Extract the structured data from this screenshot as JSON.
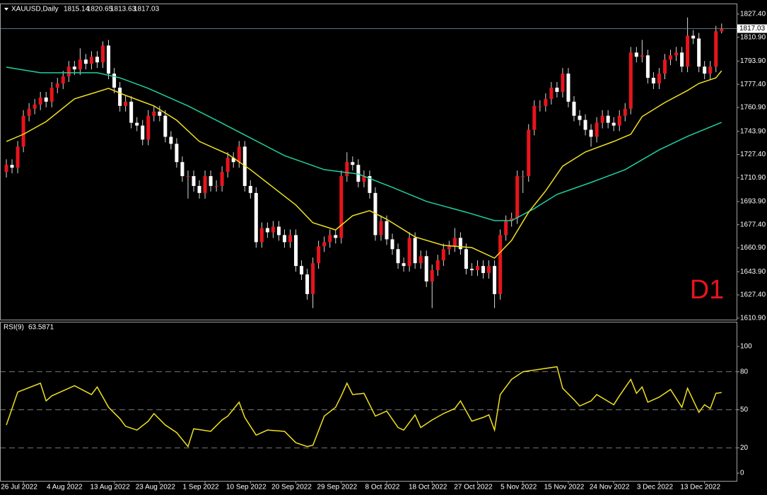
{
  "chart_data": [
    {
      "type": "candlestick",
      "title": "XAUUSD,Daily",
      "open": [
        1715,
        1720,
        1718,
        1733,
        1755,
        1760,
        1763,
        1768,
        1765,
        1775,
        1778,
        1783,
        1790,
        1788,
        1795,
        1792,
        1797,
        1793,
        1805,
        1785,
        1775,
        1762,
        1765,
        1750,
        1748,
        1738,
        1755,
        1758,
        1755,
        1740,
        1735,
        1722,
        1712,
        1712,
        1705,
        1700,
        1712,
        1705,
        1705,
        1715,
        1725,
        1722,
        1733,
        1705,
        1700,
        1665,
        1675,
        1672,
        1676,
        1670,
        1665,
        1670,
        1648,
        1642,
        1628,
        1650,
        1662,
        1665,
        1670,
        1668,
        1712,
        1722,
        1720,
        1708,
        1712,
        1700,
        1670,
        1680,
        1667,
        1660,
        1650,
        1648,
        1668,
        1650,
        1655,
        1637,
        1645,
        1652,
        1660,
        1662,
        1668,
        1660,
        1646,
        1645,
        1648,
        1643,
        1648,
        1628,
        1670,
        1680,
        1682,
        1712,
        1712,
        1745,
        1762,
        1762,
        1767,
        1775,
        1772,
        1785,
        1765,
        1755,
        1752,
        1745,
        1740,
        1750,
        1755,
        1750,
        1748,
        1755,
        1760,
        1800,
        1797,
        1798,
        1782,
        1778,
        1785,
        1795,
        1798,
        1800,
        1790,
        1812,
        1810,
        1790,
        1785,
        1790,
        1815.14
      ],
      "high": [
        1724,
        1724,
        1737,
        1759,
        1764,
        1767,
        1772,
        1772,
        1779,
        1782,
        1787,
        1794,
        1794,
        1803,
        1799,
        1801,
        1801,
        1808,
        1809,
        1789,
        1779,
        1769,
        1769,
        1754,
        1752,
        1759,
        1762,
        1762,
        1759,
        1744,
        1739,
        1726,
        1716,
        1716,
        1709,
        1716,
        1716,
        1709,
        1719,
        1729,
        1729,
        1737,
        1737,
        1709,
        1704,
        1679,
        1679,
        1680,
        1680,
        1674,
        1674,
        1674,
        1652,
        1646,
        1654,
        1666,
        1669,
        1674,
        1674,
        1716,
        1729,
        1726,
        1724,
        1716,
        1716,
        1704,
        1684,
        1684,
        1671,
        1664,
        1654,
        1672,
        1672,
        1659,
        1659,
        1649,
        1656,
        1664,
        1666,
        1675,
        1672,
        1664,
        1650,
        1652,
        1652,
        1652,
        1652,
        1674,
        1684,
        1686,
        1716,
        1716,
        1749,
        1766,
        1766,
        1771,
        1779,
        1779,
        1789,
        1789,
        1769,
        1759,
        1756,
        1749,
        1754,
        1759,
        1759,
        1754,
        1759,
        1764,
        1804,
        1804,
        1809,
        1802,
        1786,
        1789,
        1799,
        1802,
        1804,
        1804,
        1825,
        1816,
        1814,
        1794,
        1794,
        1819,
        1820.65
      ],
      "low": [
        1711,
        1714,
        1714,
        1729,
        1751,
        1756,
        1759,
        1761,
        1761,
        1771,
        1774,
        1779,
        1784,
        1784,
        1788,
        1788,
        1789,
        1789,
        1781,
        1771,
        1758,
        1758,
        1746,
        1744,
        1734,
        1734,
        1751,
        1751,
        1736,
        1731,
        1718,
        1708,
        1696,
        1701,
        1696,
        1696,
        1701,
        1701,
        1701,
        1711,
        1718,
        1718,
        1701,
        1696,
        1661,
        1661,
        1668,
        1668,
        1666,
        1661,
        1661,
        1644,
        1638,
        1624,
        1618,
        1646,
        1658,
        1661,
        1664,
        1664,
        1708,
        1716,
        1704,
        1704,
        1696,
        1666,
        1666,
        1663,
        1656,
        1646,
        1644,
        1644,
        1646,
        1646,
        1633,
        1618,
        1641,
        1648,
        1656,
        1658,
        1656,
        1642,
        1641,
        1641,
        1639,
        1639,
        1618,
        1624,
        1666,
        1676,
        1678,
        1700,
        1708,
        1741,
        1758,
        1758,
        1763,
        1768,
        1768,
        1761,
        1751,
        1748,
        1741,
        1733,
        1736,
        1746,
        1746,
        1744,
        1744,
        1751,
        1756,
        1793,
        1793,
        1778,
        1774,
        1774,
        1781,
        1791,
        1794,
        1786,
        1786,
        1806,
        1786,
        1781,
        1781,
        1786,
        1813.63
      ],
      "close": [
        1720,
        1718,
        1733,
        1755,
        1760,
        1763,
        1768,
        1765,
        1775,
        1778,
        1783,
        1790,
        1788,
        1795,
        1792,
        1797,
        1793,
        1805,
        1785,
        1775,
        1762,
        1765,
        1750,
        1748,
        1738,
        1755,
        1758,
        1755,
        1740,
        1735,
        1722,
        1712,
        1712,
        1705,
        1700,
        1712,
        1705,
        1705,
        1715,
        1725,
        1722,
        1733,
        1705,
        1700,
        1665,
        1675,
        1672,
        1676,
        1670,
        1665,
        1670,
        1648,
        1642,
        1628,
        1650,
        1662,
        1665,
        1670,
        1668,
        1712,
        1722,
        1720,
        1708,
        1712,
        1700,
        1670,
        1680,
        1667,
        1660,
        1650,
        1648,
        1668,
        1650,
        1655,
        1637,
        1645,
        1652,
        1660,
        1662,
        1668,
        1660,
        1646,
        1645,
        1648,
        1643,
        1648,
        1628,
        1670,
        1680,
        1682,
        1712,
        1712,
        1745,
        1762,
        1762,
        1767,
        1775,
        1772,
        1785,
        1765,
        1755,
        1752,
        1745,
        1740,
        1750,
        1755,
        1750,
        1748,
        1755,
        1760,
        1800,
        1797,
        1798,
        1782,
        1778,
        1785,
        1795,
        1798,
        1800,
        1790,
        1812,
        1810,
        1790,
        1785,
        1790,
        1815.14,
        1817.03
      ],
      "up_color": "#e8141c",
      "down_color": "#ffffff",
      "wick_color": "#d8d8d8",
      "overlays": [
        {
          "color": "#1fd0a0",
          "x": [
            0,
            6,
            16,
            20,
            25,
            32,
            37,
            43,
            49,
            56,
            62,
            68,
            74,
            81,
            86,
            89,
            93,
            97,
            103,
            109,
            115,
            120,
            126
          ],
          "values": [
            1789.6,
            1785.6,
            1785.6,
            1782,
            1774.5,
            1762,
            1751.8,
            1739.2,
            1726.6,
            1716.6,
            1713.5,
            1704,
            1694,
            1686.3,
            1680.3,
            1680.3,
            1688.9,
            1699,
            1707.5,
            1716.6,
            1730.7,
            1740.3,
            1750.3
          ]
        },
        {
          "color": "#f0e020",
          "x": [
            0,
            3,
            7,
            12,
            18,
            21,
            26,
            30,
            34,
            39,
            43,
            47,
            51,
            54,
            58,
            61,
            64,
            67,
            72,
            77,
            82,
            86,
            89,
            92,
            95,
            98,
            102,
            107,
            110,
            112,
            116,
            120,
            122,
            125,
            126
          ],
          "values": [
            1736.7,
            1741.8,
            1750.8,
            1767,
            1774.5,
            1769.5,
            1762,
            1751.8,
            1736.7,
            1727.7,
            1716.6,
            1704,
            1691.4,
            1678.8,
            1673.7,
            1683.8,
            1687.4,
            1681.3,
            1668.7,
            1662.7,
            1661.1,
            1653.6,
            1666.2,
            1686.3,
            1701.5,
            1719.1,
            1729.2,
            1736.7,
            1741.8,
            1754.4,
            1764.4,
            1773,
            1778,
            1782,
            1787
          ]
        }
      ],
      "ylim": [
        1609.8,
        1833.9
      ],
      "yticks": [
        {
          "value": 1827.4,
          "label": "1827.40"
        },
        {
          "value": 1810.9,
          "label": "1810.90"
        },
        {
          "value": 1793.9,
          "label": "1793.90"
        },
        {
          "value": 1777.4,
          "label": "1777.40"
        },
        {
          "value": 1760.9,
          "label": "1760.90"
        },
        {
          "value": 1743.9,
          "label": "1743.90"
        },
        {
          "value": 1727.4,
          "label": "1727.40"
        },
        {
          "value": 1710.9,
          "label": "1710.90"
        },
        {
          "value": 1693.9,
          "label": "1693.90"
        },
        {
          "value": 1677.4,
          "label": "1677.40"
        },
        {
          "value": 1660.9,
          "label": "1660.90"
        },
        {
          "value": 1643.9,
          "label": "1643.90"
        },
        {
          "value": 1627.4,
          "label": "1627.40"
        },
        {
          "value": 1610.9,
          "label": "1610.90"
        }
      ],
      "annotation": "D1"
    },
    {
      "type": "line",
      "title": "RSI(9)",
      "color": "#f0e020",
      "x": [
        0,
        2,
        6,
        7,
        8,
        12,
        15,
        16,
        18,
        20,
        21,
        23,
        25,
        26,
        28,
        30,
        32,
        33,
        36,
        38,
        39,
        41,
        42,
        44,
        46,
        49,
        51,
        53,
        54,
        56,
        58,
        59,
        60,
        61,
        63,
        65,
        67,
        69,
        70,
        72,
        73,
        75,
        77,
        79,
        80,
        82,
        84,
        85,
        86,
        87,
        89,
        91,
        94,
        97,
        98,
        100,
        101,
        103,
        104,
        107,
        108,
        110,
        111,
        112,
        113,
        115,
        117,
        119,
        120,
        122,
        123,
        124,
        125,
        126
      ],
      "values": [
        38,
        64,
        71,
        57,
        61,
        69,
        62,
        68,
        52,
        43,
        37,
        34,
        41,
        47,
        38,
        32,
        21,
        35,
        33,
        42,
        45,
        56,
        44,
        30,
        34,
        33,
        24,
        21,
        22,
        45,
        52,
        61,
        71,
        62,
        63,
        45,
        49,
        36,
        34,
        46,
        36,
        42,
        47,
        51,
        57,
        41,
        44,
        46,
        34,
        62,
        74,
        80,
        82,
        84,
        67,
        58,
        53,
        57,
        62,
        54,
        61,
        74,
        63,
        68,
        56,
        60,
        66,
        52,
        67,
        48,
        54,
        51,
        63,
        63.5871
      ],
      "ylim": [
        -6.1,
        119.5
      ],
      "yticks": [
        0,
        20,
        50,
        80,
        100
      ],
      "levels": [
        20,
        50,
        80
      ],
      "xticks": [
        {
          "value": 3,
          "label": "26 Jul 2022"
        },
        {
          "value": 11,
          "label": "4 Aug 2022"
        },
        {
          "value": 19,
          "label": "13 Aug 2022"
        },
        {
          "value": 27,
          "label": "23 Aug 2022"
        },
        {
          "value": 35,
          "label": "1 Sep 2022"
        },
        {
          "value": 43,
          "label": "10 Sep 2022"
        },
        {
          "value": 51,
          "label": "20 Sep 2022"
        },
        {
          "value": 59,
          "label": "29 Sep 2022"
        },
        {
          "value": 67,
          "label": "8 Oct 2022"
        },
        {
          "value": 75,
          "label": "18 Oct 2022"
        },
        {
          "value": 83,
          "label": "27 Oct 2022"
        },
        {
          "value": 91,
          "label": "5 Nov 2022"
        },
        {
          "value": 99,
          "label": "15 Nov 2022"
        },
        {
          "value": 107,
          "label": "24 Nov 2022"
        },
        {
          "value": 115,
          "label": "3 Dec 2022"
        },
        {
          "value": 123,
          "label": "13 Dec 2022"
        }
      ]
    }
  ]
}
